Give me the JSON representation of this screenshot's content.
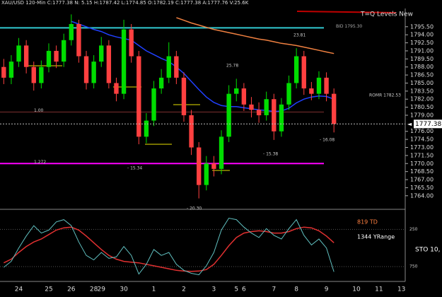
{
  "chart_data": {
    "type": "candlestick",
    "title": "XAU/USD 120-Min  C:1777.38  N: 5.15  H:1787.42  L:1774.85  O:1782.19  C:1777.38  A:1777.76  V:25.6K",
    "indicator_title": "T=Q Levels New",
    "notes": [
      "819 TD",
      "1344 YRange"
    ],
    "up_color": "#00dd00",
    "down_color": "#ff4040",
    "categories": [
      null,
      null,
      "24",
      null,
      null,
      null,
      "25",
      null,
      null,
      "26",
      null,
      null,
      "28",
      "29",
      null,
      null,
      "30",
      null,
      null,
      null,
      "1",
      null,
      null,
      null,
      "2",
      null,
      null,
      null,
      "3",
      null,
      null,
      "5",
      "6",
      null,
      null,
      null,
      "7",
      null,
      null,
      "8",
      null,
      null,
      null,
      "9",
      null,
      null,
      null,
      "10",
      null,
      null,
      "11",
      null,
      null,
      "13"
    ],
    "open": [
      1788,
      1786,
      1789,
      1792,
      1788,
      1785,
      1788,
      1791,
      1789,
      1793,
      1796,
      1790,
      1785,
      1789,
      1792,
      1785,
      1783,
      1795,
      1790,
      1775,
      1778,
      1784,
      1786,
      1790,
      1786,
      1779,
      1773,
      1766,
      1770,
      1769,
      1775,
      1783,
      1784,
      1781,
      1780,
      1779,
      1782,
      1776,
      1781,
      1785,
      1790,
      1784,
      1783,
      1786,
      1783,
      null,
      null,
      null,
      null,
      null,
      null,
      null,
      null,
      null
    ],
    "high": [
      1789.5,
      1790.2,
      1793.4,
      1793,
      1789,
      1789.2,
      1792.4,
      1792,
      1794.2,
      1797.8,
      1796.8,
      1791,
      1790.2,
      1793.6,
      1793,
      1786,
      1796.8,
      1796,
      1791,
      1779.4,
      1785.4,
      1787.6,
      1792.6,
      1791,
      1787,
      1780,
      1774,
      1771.4,
      1771.4,
      1776.2,
      1784.6,
      1785.8,
      1785,
      1782.4,
      1781.4,
      1783.4,
      1783,
      1782.2,
      1786.4,
      1791.5,
      1791,
      1785.2,
      1787.2,
      1787,
      1784,
      null,
      null,
      null,
      null,
      null,
      null,
      null,
      null,
      null
    ],
    "low": [
      1784.8,
      1784.8,
      1788,
      1786.8,
      1783.6,
      1784,
      1787,
      1787.8,
      1788,
      1792,
      1788.8,
      1783.8,
      1784,
      1788,
      1784,
      1781.6,
      1782,
      1788.8,
      1773.6,
      1773.8,
      1777,
      1783,
      1785,
      1784.8,
      1777.8,
      1771.6,
      1763.5,
      1765,
      1767.6,
      1768,
      1774,
      1781.6,
      1779.8,
      1778.6,
      1777.6,
      1778,
      1774.4,
      1775,
      1780,
      1784,
      1782.8,
      1781.8,
      1782,
      1781.6,
      1775.8,
      null,
      null,
      null,
      null,
      null,
      null,
      null,
      null,
      null
    ],
    "close": [
      1786,
      1789,
      1792,
      1788,
      1785,
      1788,
      1791,
      1789,
      1793,
      1796,
      1790,
      1785,
      1789,
      1792,
      1785,
      1783,
      1795,
      1790,
      1775,
      1778,
      1784,
      1786,
      1790,
      1786,
      1779,
      1773,
      1766,
      1770,
      1769,
      1775,
      1783,
      1784,
      1781,
      1780,
      1779,
      1782,
      1776,
      1781,
      1785,
      1790,
      1784,
      1783,
      1786,
      1783,
      1777.38,
      null,
      null,
      null,
      null,
      null,
      null,
      null,
      null,
      null
    ],
    "overlays": [
      {
        "color": "#2040ff",
        "values": [
          null,
          null,
          null,
          null,
          null,
          null,
          null,
          null,
          null,
          1796.5,
          1796,
          1795.5,
          1795,
          1794.6,
          1794,
          1793.6,
          1793.3,
          1793,
          1792,
          1791,
          1790.3,
          1789.6,
          1789,
          1788,
          1786.8,
          1785.3,
          1783.8,
          1782.4,
          1781.4,
          1780.8,
          1780.6,
          1780.6,
          1780.4,
          1780.2,
          1780,
          1779.9,
          1779.7,
          1779.8,
          1780.3,
          1781.3,
          1782,
          1782.4,
          1782.6,
          1782.5,
          1782,
          null,
          null,
          null,
          null,
          null,
          null,
          null,
          null,
          null
        ]
      },
      {
        "color": "#f08040",
        "values": [
          null,
          null,
          null,
          null,
          null,
          null,
          null,
          null,
          null,
          null,
          null,
          null,
          null,
          null,
          null,
          null,
          null,
          null,
          null,
          null,
          null,
          null,
          null,
          1797.2,
          1796.7,
          1796.2,
          1795.8,
          1795.4,
          1795,
          1794.7,
          1794.4,
          1794.1,
          1793.8,
          1793.5,
          1793.2,
          1793,
          1792.7,
          1792.4,
          1792.2,
          1792,
          1791.7,
          1791.4,
          1791.1,
          1790.8,
          1790.5,
          null,
          null,
          null,
          null,
          null,
          null,
          null,
          null,
          null
        ]
      }
    ],
    "levels": [
      {
        "label": "BID 1795.30",
        "value": 1795.3,
        "color": "#30c8d0"
      },
      {
        "label": "1.272",
        "value": 1770,
        "color": "#ff00ff"
      },
      {
        "label": "1.00",
        "value": 1779.6,
        "color": "#803030"
      }
    ],
    "annotations": [
      "25.78",
      "23.81",
      "- 15.34",
      "- 15.38",
      "- 16.08",
      "- 20.30",
      "ROMR 1782.53"
    ],
    "ylim": [
      1761.6,
      1798.9
    ],
    "yticks": [
      {
        "value": 1764,
        "label": "1764.00"
      },
      {
        "value": 1765.5,
        "label": "1765.50"
      },
      {
        "value": 1767,
        "label": "1767.00"
      },
      {
        "value": 1768.5,
        "label": "1768.50"
      },
      {
        "value": 1770,
        "label": "1770.00"
      },
      {
        "value": 1771.5,
        "label": "1771.50"
      },
      {
        "value": 1773,
        "label": "1773.00"
      },
      {
        "value": 1774.5,
        "label": "1774.50"
      },
      {
        "value": 1776,
        "label": "1776.00"
      },
      {
        "value": 1779,
        "label": "1779.00"
      },
      {
        "value": 1780.5,
        "label": "1780.50"
      },
      {
        "value": 1782,
        "label": "1782.00"
      },
      {
        "value": 1783.5,
        "label": "1783.50"
      },
      {
        "value": 1785,
        "label": "1785.00"
      },
      {
        "value": 1786.5,
        "label": "1786.50"
      },
      {
        "value": 1788,
        "label": "1788.00"
      },
      {
        "value": 1789.5,
        "label": "1789.50"
      },
      {
        "value": 1791,
        "label": "1791.00"
      },
      {
        "value": 1792.5,
        "label": "1792.50"
      },
      {
        "value": 1794,
        "label": "1794.00"
      },
      {
        "value": 1795.5,
        "label": "1795.50"
      }
    ],
    "oscillator": {
      "label": "STO 10,",
      "ylim": [
        0,
        940
      ],
      "inverted": true,
      "yticks": [
        250,
        750
      ],
      "series": [
        {
          "color": "#e03030",
          "values": [
            700,
            650,
            560,
            480,
            420,
            380,
            320,
            260,
            230,
            220,
            260,
            340,
            430,
            520,
            600,
            650,
            680,
            690,
            700,
            720,
            740,
            760,
            780,
            800,
            810,
            815,
            810,
            790,
            720,
            600,
            470,
            360,
            300,
            280,
            270,
            280,
            300,
            300,
            280,
            240,
            220,
            230,
            270,
            340,
            430,
            null,
            null,
            null,
            null,
            null,
            null,
            null,
            null,
            null
          ]
        },
        {
          "color": "#60c0c0",
          "values": [
            760,
            680,
            500,
            340,
            200,
            300,
            260,
            150,
            120,
            200,
            420,
            600,
            660,
            560,
            640,
            620,
            480,
            600,
            850,
            720,
            520,
            600,
            560,
            720,
            800,
            840,
            860,
            740,
            560,
            260,
            100,
            120,
            220,
            300,
            360,
            240,
            330,
            380,
            240,
            120,
            330,
            460,
            380,
            500,
            820,
            null,
            null,
            null,
            null,
            null,
            null,
            null,
            null,
            null
          ]
        }
      ]
    }
  }
}
